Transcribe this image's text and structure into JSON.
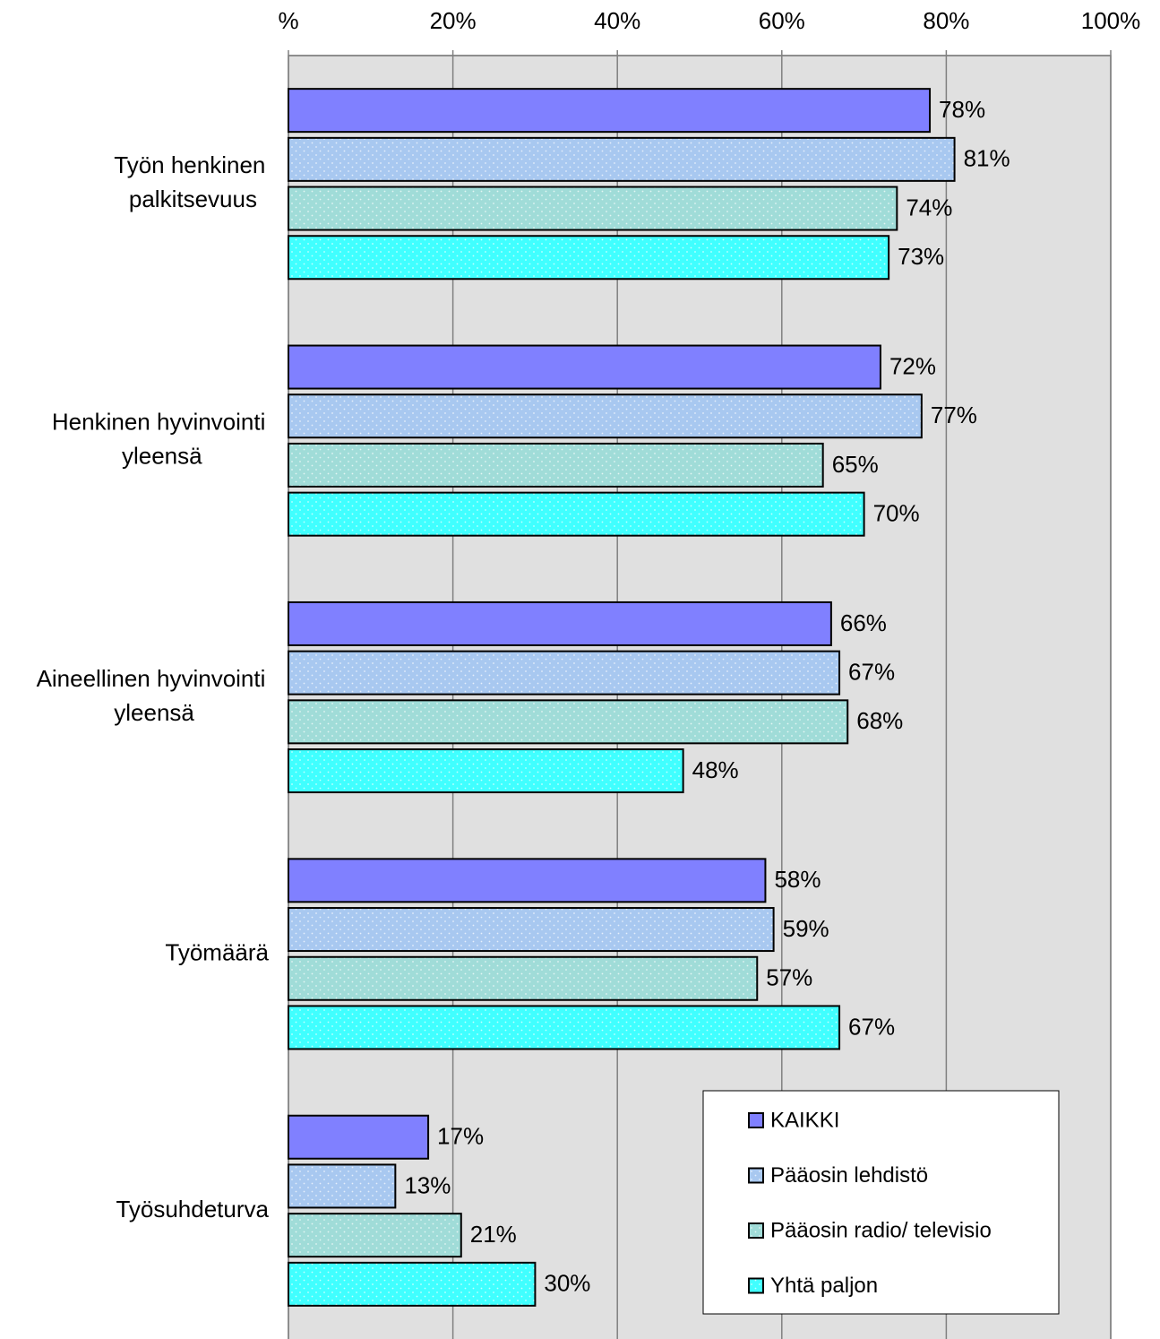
{
  "chart_data": {
    "type": "hbar",
    "categories": [
      "Työn henkinen palkitsevuus",
      "Henkinen hyvinvointi yleensä",
      "Aineellinen hyvinvointi yleensä",
      "Työmäärä",
      "Työsuhdeturva"
    ],
    "series": [
      {
        "name": "KAIKKI",
        "color": "#8080ff",
        "pattern": "solid",
        "values": [
          78,
          72,
          66,
          58,
          17
        ],
        "value_labels": [
          "78%",
          "72%",
          "66%",
          "58%",
          "17%"
        ]
      },
      {
        "name": "Pääosin lehdistö",
        "color": "#a8c8f0",
        "pattern": "dots",
        "values": [
          81,
          77,
          67,
          59,
          13
        ],
        "value_labels": [
          "81%",
          "77%",
          "67%",
          "59%",
          "13%"
        ]
      },
      {
        "name": "Pääosin radio/ televisio",
        "color": "#a0dcd8",
        "pattern": "dots",
        "values": [
          74,
          65,
          68,
          57,
          21
        ],
        "value_labels": [
          "74%",
          "65%",
          "68%",
          "57%",
          "21%"
        ]
      },
      {
        "name": "Yhtä paljon",
        "color": "#40ffff",
        "pattern": "dots",
        "values": [
          73,
          70,
          48,
          67,
          30
        ],
        "value_labels": [
          "73%",
          "70%",
          "48%",
          "67%",
          "30%"
        ]
      }
    ],
    "xlim": [
      0,
      100
    ],
    "xticks": [
      {
        "value": 0,
        "label": "%"
      },
      {
        "value": 20,
        "label": "20%"
      },
      {
        "value": 40,
        "label": "40%"
      },
      {
        "value": 60,
        "label": "60%"
      },
      {
        "value": 80,
        "label": "80%"
      },
      {
        "value": 100,
        "label": "100%"
      }
    ],
    "grid": true,
    "legend": "lower right"
  }
}
